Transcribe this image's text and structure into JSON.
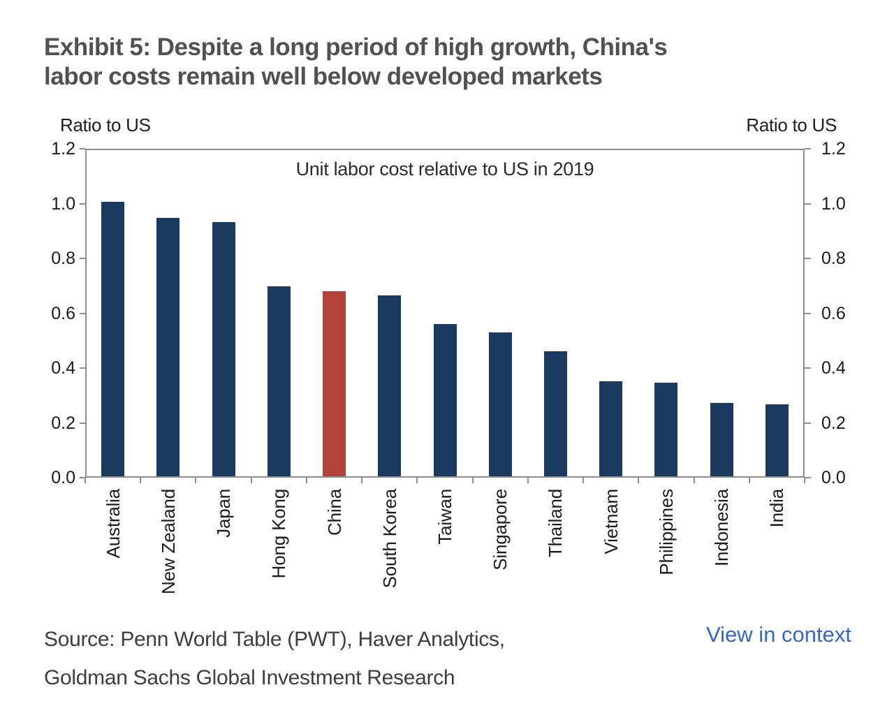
{
  "header": {
    "exhibit_title_line1": "Exhibit 5: Despite a long period of high growth, China's",
    "exhibit_title_line2": "labor costs remain well below developed markets"
  },
  "chart_data": {
    "type": "bar",
    "title": "Unit labor cost relative to US in 2019",
    "left_axis_label": "Ratio to US",
    "right_axis_label": "Ratio to US",
    "categories": [
      "Australia",
      "New Zealand",
      "Japan",
      "Hong Kong",
      "China",
      "South Korea",
      "Taiwan",
      "Singapore",
      "Thailand",
      "Vietnam",
      "Philippines",
      "Indonesia",
      "India"
    ],
    "values": [
      1.01,
      0.95,
      0.935,
      0.7,
      0.68,
      0.665,
      0.56,
      0.53,
      0.46,
      0.35,
      0.345,
      0.27,
      0.265
    ],
    "ylim": [
      0,
      1.2
    ],
    "yticks": [
      0.0,
      0.2,
      0.4,
      0.6,
      0.8,
      1.0,
      1.2
    ],
    "grid": "off",
    "legend": "none",
    "bar_color": "#1b3a5f",
    "highlight_category": "China",
    "highlight_color": "#b4423b",
    "axis_color": "#8e8e8e"
  },
  "footer": {
    "source_line1": "Source: Penn World Table (PWT), Haver Analytics,",
    "source_line2": "Goldman Sachs Global Investment Research",
    "link_label": "View in context",
    "link_color": "#3566cc"
  }
}
